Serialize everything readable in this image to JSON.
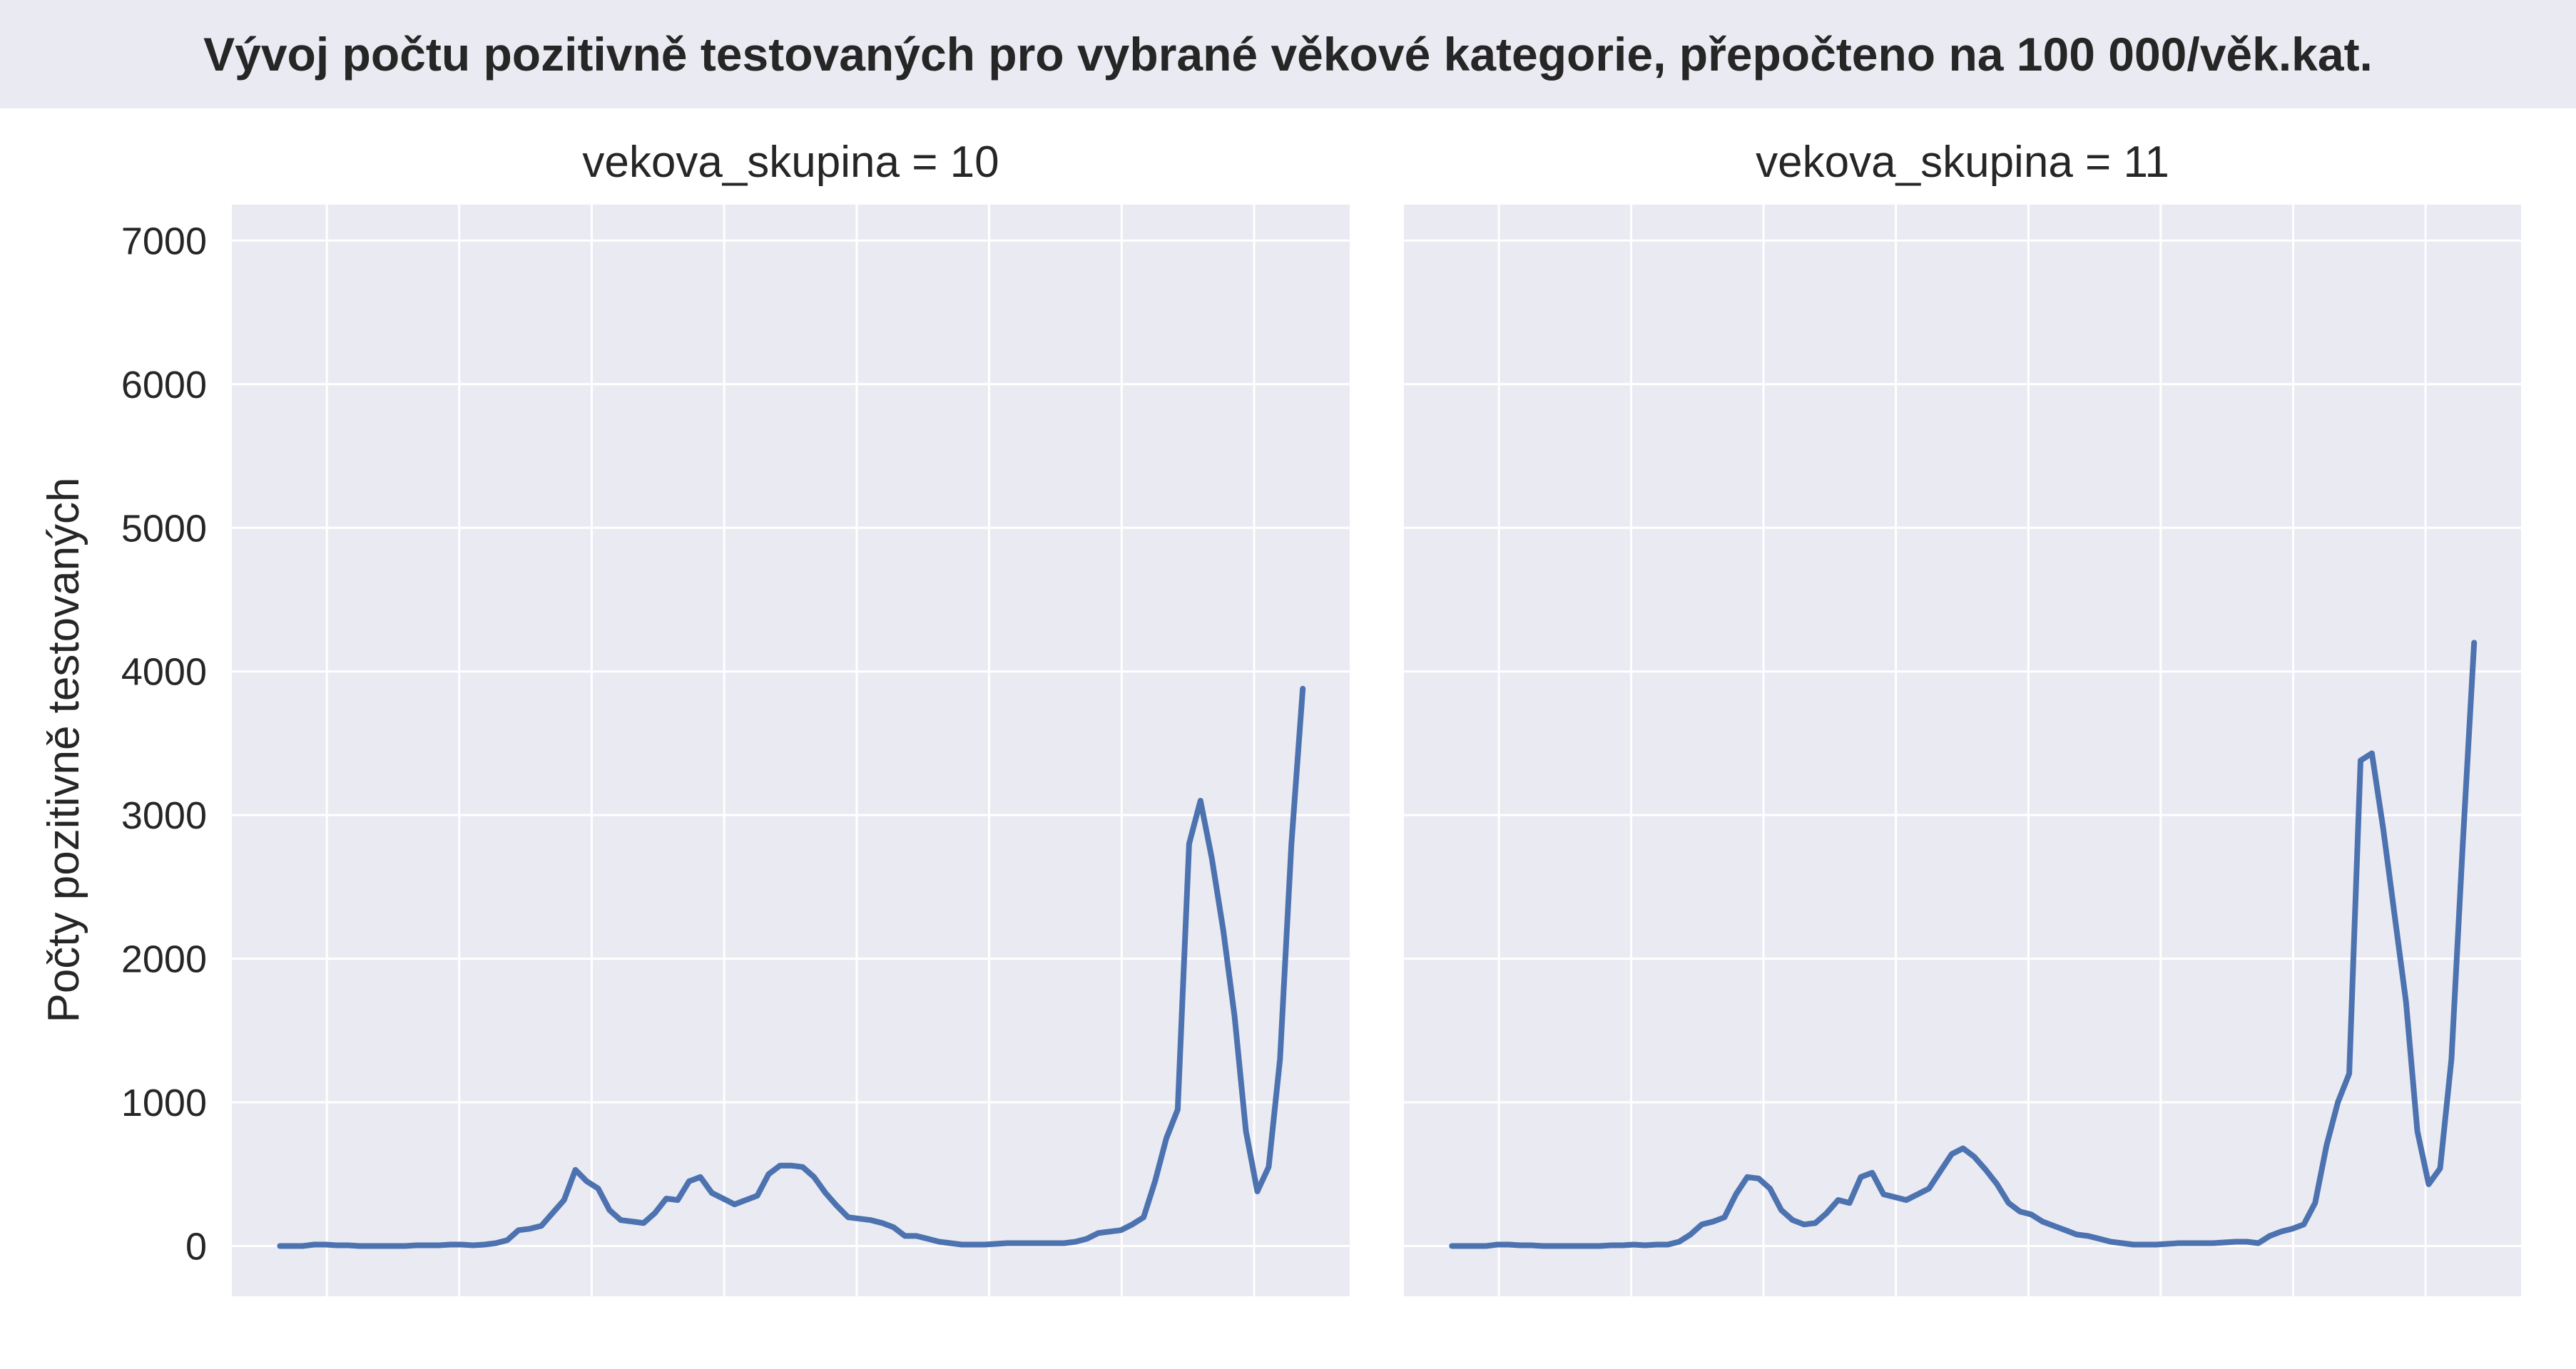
{
  "header": {
    "title": "Vývoj počtu pozitivně testovaných pro vybrané věkové kategorie, přepočteno na 100 000/věk.kat."
  },
  "chart_data": {
    "type": "line",
    "ylabel": "Počty pozitivně testovaných",
    "xlabel": "",
    "ylim": [
      -350,
      7250
    ],
    "y_ticks": [
      0,
      1000,
      2000,
      3000,
      4000,
      5000,
      6000,
      7000
    ],
    "grid": true,
    "line_color": "#4c72b0",
    "background_color": "#eaeaf2",
    "panels": [
      {
        "title": "vekova_skupina = 10",
        "series": [
          {
            "values": [
              0,
              0,
              0,
              10,
              10,
              5,
              5,
              0,
              0,
              0,
              0,
              0,
              5,
              5,
              5,
              10,
              10,
              5,
              10,
              20,
              40,
              110,
              120,
              140,
              230,
              320,
              530,
              450,
              400,
              250,
              180,
              170,
              160,
              230,
              330,
              320,
              450,
              480,
              370,
              330,
              290,
              320,
              350,
              500,
              560,
              560,
              550,
              480,
              370,
              280,
              200,
              190,
              180,
              160,
              130,
              70,
              70,
              50,
              30,
              20,
              10,
              10,
              10,
              15,
              20,
              20,
              20,
              20,
              20,
              20,
              30,
              50,
              90,
              100,
              110,
              150,
              200,
              450,
              750,
              950,
              2800,
              3100,
              2700,
              2200,
              1600,
              800,
              380,
              550,
              1300,
              2800,
              3880
            ]
          }
        ]
      },
      {
        "title": "vekova_skupina = 11",
        "series": [
          {
            "values": [
              0,
              0,
              0,
              0,
              10,
              10,
              5,
              5,
              0,
              0,
              0,
              0,
              0,
              0,
              5,
              5,
              10,
              5,
              10,
              10,
              30,
              80,
              150,
              170,
              200,
              360,
              480,
              470,
              400,
              250,
              180,
              150,
              160,
              230,
              320,
              300,
              480,
              510,
              360,
              340,
              320,
              360,
              400,
              520,
              640,
              680,
              620,
              530,
              430,
              300,
              240,
              220,
              170,
              140,
              110,
              80,
              70,
              50,
              30,
              20,
              10,
              10,
              10,
              15,
              20,
              20,
              20,
              20,
              25,
              30,
              30,
              20,
              70,
              100,
              120,
              150,
              300,
              700,
              1000,
              1200,
              3380,
              3430,
              2900,
              2300,
              1700,
              800,
              430,
              540,
              1300,
              2800,
              4200
            ]
          }
        ]
      }
    ]
  }
}
